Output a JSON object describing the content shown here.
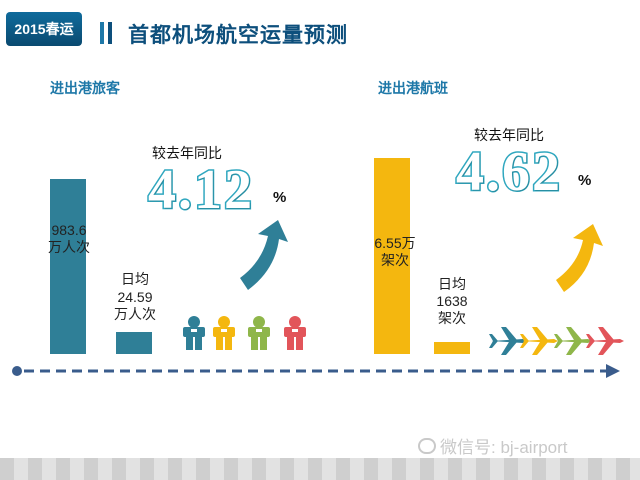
{
  "header": {
    "tag": "2015春运",
    "title": "首都机场航空运量预测"
  },
  "passengers": {
    "section_title": "进出港旅客",
    "total_value": "983.6",
    "total_unit": "万人次",
    "daily_prefix": "日均",
    "daily_value": "24.59",
    "daily_unit": "万人次",
    "compare_label": "较去年同比",
    "growth_value": "4.12",
    "growth_symbol": "%",
    "accent_color": "#2f7f97",
    "people_icon_colors": [
      "#2f7f97",
      "#f4b70f",
      "#8fb64a",
      "#e2555a"
    ]
  },
  "flights": {
    "section_title": "进出港航班",
    "total_value": "6.55万",
    "total_unit": "架次",
    "daily_prefix": "日均",
    "daily_value": "1638",
    "daily_unit": "架次",
    "compare_label": "较去年同比",
    "growth_value": "4.62",
    "growth_symbol": "%",
    "accent_color": "#f4b70f",
    "plane_icon_colors": [
      "#2f7f97",
      "#f4b70f",
      "#8fb64a",
      "#e2555a"
    ]
  },
  "watermark": "微信号: bj-airport",
  "chart_data": [
    {
      "type": "bar",
      "title": "进出港旅客",
      "categories": [
        "",
        "日均"
      ],
      "values": [
        983.6,
        24.59
      ],
      "unit": "万人次",
      "annotation": "较去年同比 4.12%"
    },
    {
      "type": "bar",
      "title": "进出港航班",
      "categories": [
        "",
        "日均"
      ],
      "values": [
        65500,
        1638
      ],
      "unit": "架次",
      "annotation": "较去年同比 4.62%"
    }
  ]
}
